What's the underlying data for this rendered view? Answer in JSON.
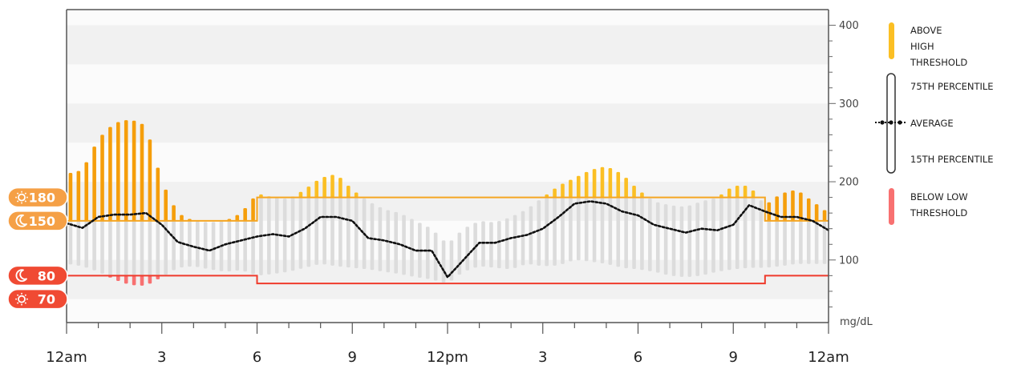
{
  "chart_data": {
    "type": "bar",
    "description_type": "ambulatory glucose profile (per-slot percentile range bars with average line)",
    "unit": "mg/dL",
    "y_ticks": [
      100,
      200,
      300,
      400
    ],
    "ylim": [
      20,
      420
    ],
    "x_tick_labels": [
      "12am",
      "3",
      "6",
      "9",
      "12pm",
      "3",
      "6",
      "9",
      "12am"
    ],
    "x_hours": [
      0,
      3,
      6,
      9,
      12,
      15,
      18,
      21,
      24
    ],
    "grid": "horizontal bands",
    "legend_position": "right",
    "legend": {
      "above_high": "ABOVE HIGH THRESHOLD",
      "p75": "75TH PERCENTILE",
      "average": "AVERAGE",
      "p15": "15TH PERCENTILE",
      "below_low": "BELOW LOW THRESHOLD"
    },
    "colors": {
      "above_high_night": "#f59e0b",
      "above_high_day": "#fbbf24",
      "in_range": "#dcdcdc",
      "below_low": "#f87171",
      "high_line": "#f5a623",
      "low_line": "#ef3b2c",
      "average": "#111111",
      "pill_orange": "#f5a046",
      "pill_red": "#f04a33"
    },
    "thresholds": {
      "high_pills": [
        {
          "icon": "sun-icon",
          "value": "180"
        },
        {
          "icon": "moon-icon",
          "value": "150"
        }
      ],
      "low_pills": [
        {
          "icon": "moon-icon",
          "value": "80"
        },
        {
          "icon": "sun-icon",
          "value": "70"
        }
      ],
      "high_segments": [
        {
          "from_hour": 0,
          "to_hour": 6,
          "value": 150
        },
        {
          "from_hour": 6,
          "to_hour": 22,
          "value": 180
        },
        {
          "from_hour": 22,
          "to_hour": 24,
          "value": 150
        }
      ],
      "low_segments": [
        {
          "from_hour": 0,
          "to_hour": 6,
          "value": 80
        },
        {
          "from_hour": 6,
          "to_hour": 22,
          "value": 70
        },
        {
          "from_hour": 22,
          "to_hour": 24,
          "value": 80
        }
      ]
    },
    "series": [
      {
        "key": "p15",
        "x": [
          0,
          0.5,
          1,
          1.5,
          2,
          2.5,
          3,
          3.5,
          4,
          4.5,
          5,
          5.5,
          6,
          6.5,
          7,
          7.5,
          8,
          8.5,
          9,
          9.5,
          10,
          10.5,
          11,
          11.5,
          12,
          12.5,
          13,
          13.5,
          14,
          14.5,
          15,
          15.5,
          16,
          16.5,
          17,
          17.5,
          18,
          18.5,
          19,
          19.5,
          20,
          20.5,
          21,
          21.5,
          22,
          22.5,
          23,
          23.5,
          24
        ],
        "values": [
          95,
          92,
          85,
          75,
          68,
          67,
          78,
          90,
          92,
          88,
          85,
          87,
          80,
          82,
          85,
          90,
          95,
          92,
          90,
          88,
          85,
          82,
          78,
          75,
          70,
          85,
          92,
          90,
          88,
          95,
          92,
          93,
          100,
          98,
          95,
          90,
          88,
          85,
          80,
          78,
          80,
          85,
          88,
          90,
          90,
          92,
          95,
          95,
          95
        ]
      },
      {
        "key": "p75",
        "x": [
          0,
          0.5,
          1,
          1.5,
          2,
          2.5,
          3,
          3.5,
          4,
          4.5,
          5,
          5.5,
          6,
          6.5,
          7,
          7.5,
          8,
          8.5,
          9,
          9.5,
          10,
          10.5,
          11,
          11.5,
          12,
          12.5,
          13,
          13.5,
          14,
          14.5,
          15,
          15.5,
          16,
          16.5,
          17,
          17.5,
          18,
          18.5,
          19,
          19.5,
          20,
          20.5,
          21,
          21.5,
          22,
          22.5,
          23,
          23.5,
          24
        ],
        "values": [
          210,
          215,
          255,
          275,
          280,
          272,
          200,
          160,
          150,
          148,
          150,
          160,
          185,
          180,
          178,
          190,
          205,
          210,
          190,
          175,
          165,
          160,
          150,
          140,
          120,
          140,
          150,
          148,
          155,
          165,
          180,
          195,
          205,
          215,
          220,
          210,
          190,
          175,
          170,
          168,
          175,
          180,
          195,
          195,
          170,
          185,
          190,
          175,
          160
        ]
      },
      {
        "key": "average",
        "x": [
          0,
          0.5,
          1,
          1.5,
          2,
          2.5,
          3,
          3.5,
          4,
          4.5,
          5,
          5.5,
          6,
          6.5,
          7,
          7.5,
          8,
          8.5,
          9,
          9.5,
          10,
          10.5,
          11,
          11.5,
          12,
          12.5,
          13,
          13.5,
          14,
          14.5,
          15,
          15.5,
          16,
          16.5,
          17,
          17.5,
          18,
          18.5,
          19,
          19.5,
          20,
          20.5,
          21,
          21.5,
          22,
          22.5,
          23,
          23.5,
          24
        ],
        "values": [
          147,
          141,
          155,
          158,
          158,
          160,
          145,
          123,
          117,
          112,
          120,
          125,
          130,
          133,
          130,
          140,
          155,
          155,
          150,
          128,
          125,
          120,
          112,
          112,
          78,
          100,
          122,
          122,
          128,
          132,
          140,
          155,
          172,
          175,
          172,
          162,
          157,
          145,
          140,
          135,
          140,
          138,
          145,
          170,
          162,
          155,
          155,
          150,
          138
        ]
      }
    ]
  }
}
